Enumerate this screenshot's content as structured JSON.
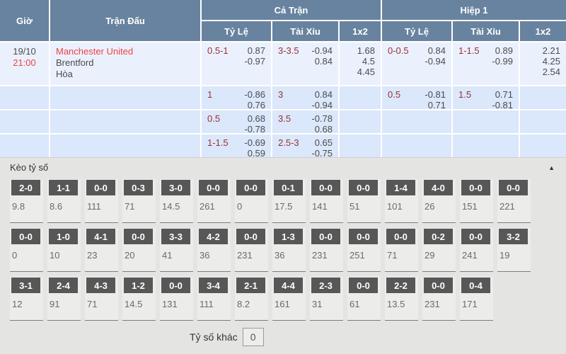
{
  "colors": {
    "header_bg": "#68839f",
    "row1_bg": "#eaf1fd",
    "row_bg": "#dbe7fa",
    "accent_red": "#ee4343",
    "line_maroon": "#9a3038",
    "section_bg": "#e4e4e3",
    "box_bg": "#575757"
  },
  "header": {
    "time": "Giờ",
    "match": "Trận Đấu",
    "full_match": "Cả Trận",
    "first_half": "Hiệp 1",
    "handicap": "Tỷ Lệ",
    "over_under": "Tài Xỉu",
    "one_x_two": "1x2"
  },
  "match": {
    "date": "19/10",
    "time": "21:00",
    "home": "Manchester United",
    "away": "Brentford",
    "draw": "Hòa"
  },
  "odds": {
    "rows": [
      {
        "ft_hdp": {
          "line": "0.5-1",
          "top": "0.87",
          "bottom": "-0.97"
        },
        "ft_ou": {
          "line": "3-3.5",
          "top": "-0.94",
          "bottom": "0.84"
        },
        "ft_1x2": {
          "v1": "1.68",
          "v2": "4.5",
          "v3": "4.45"
        },
        "h1_hdp": {
          "line": "0-0.5",
          "top": "0.84",
          "bottom": "-0.94"
        },
        "h1_ou": {
          "line": "1-1.5",
          "top": "0.89",
          "bottom": "-0.99"
        },
        "h1_1x2": {
          "v1": "2.21",
          "v2": "4.25",
          "v3": "2.54"
        }
      },
      {
        "ft_hdp": {
          "line": "1",
          "top": "-0.86",
          "bottom": "0.76"
        },
        "ft_ou": {
          "line": "3",
          "top": "0.84",
          "bottom": "-0.94"
        },
        "h1_hdp": {
          "line": "0.5",
          "top": "-0.81",
          "bottom": "0.71"
        },
        "h1_ou": {
          "line": "1.5",
          "top": "0.71",
          "bottom": "-0.81"
        }
      },
      {
        "ft_hdp": {
          "line": "0.5",
          "top": "0.68",
          "bottom": "-0.78"
        },
        "ft_ou": {
          "line": "3.5",
          "top": "-0.78",
          "bottom": "0.68"
        }
      },
      {
        "ft_hdp": {
          "line": "1-1.5",
          "top": "-0.69",
          "bottom": "0.59"
        },
        "ft_ou": {
          "line": "2.5-3",
          "top": "0.65",
          "bottom": "-0.75"
        }
      }
    ]
  },
  "score_section": {
    "title": "Kèo tỷ số",
    "collapse_icon": "▲",
    "rows": [
      [
        {
          "score": "2-0",
          "odds": "9.8"
        },
        {
          "score": "1-1",
          "odds": "8.6"
        },
        {
          "score": "0-0",
          "odds": "111"
        },
        {
          "score": "0-3",
          "odds": "71"
        },
        {
          "score": "3-0",
          "odds": "14.5"
        },
        {
          "score": "0-0",
          "odds": "261"
        },
        {
          "score": "0-0",
          "odds": "0"
        },
        {
          "score": "0-1",
          "odds": "17.5"
        },
        {
          "score": "0-0",
          "odds": "141"
        },
        {
          "score": "0-0",
          "odds": "51"
        },
        {
          "score": "1-4",
          "odds": "101"
        },
        {
          "score": "4-0",
          "odds": "26"
        },
        {
          "score": "0-0",
          "odds": "151"
        },
        {
          "score": "0-0",
          "odds": "221"
        }
      ],
      [
        {
          "score": "0-0",
          "odds": "0"
        },
        {
          "score": "1-0",
          "odds": "10"
        },
        {
          "score": "4-1",
          "odds": "23"
        },
        {
          "score": "0-0",
          "odds": "20"
        },
        {
          "score": "3-3",
          "odds": "41"
        },
        {
          "score": "4-2",
          "odds": "36"
        },
        {
          "score": "0-0",
          "odds": "231"
        },
        {
          "score": "1-3",
          "odds": "36"
        },
        {
          "score": "0-0",
          "odds": "231"
        },
        {
          "score": "0-0",
          "odds": "251"
        },
        {
          "score": "0-0",
          "odds": "71"
        },
        {
          "score": "0-2",
          "odds": "29"
        },
        {
          "score": "0-0",
          "odds": "241"
        },
        {
          "score": "3-2",
          "odds": "19"
        }
      ],
      [
        {
          "score": "3-1",
          "odds": "12"
        },
        {
          "score": "2-4",
          "odds": "91"
        },
        {
          "score": "4-3",
          "odds": "71"
        },
        {
          "score": "1-2",
          "odds": "14.5"
        },
        {
          "score": "0-0",
          "odds": "131"
        },
        {
          "score": "3-4",
          "odds": "111"
        },
        {
          "score": "2-1",
          "odds": "8.2"
        },
        {
          "score": "4-4",
          "odds": "161"
        },
        {
          "score": "2-3",
          "odds": "31"
        },
        {
          "score": "0-0",
          "odds": "61"
        },
        {
          "score": "2-2",
          "odds": "13.5"
        },
        {
          "score": "0-0",
          "odds": "231"
        },
        {
          "score": "0-4",
          "odds": "171"
        }
      ]
    ],
    "other": {
      "label": "Tỷ số khác",
      "value": "0"
    }
  }
}
